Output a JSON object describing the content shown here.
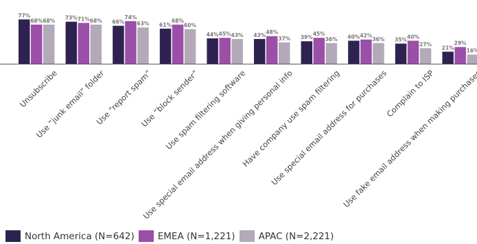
{
  "chart_data": {
    "type": "bar",
    "categories": [
      "Unsubscribe",
      "Use “junk email” folder",
      "Use “report spam”",
      "Use “block sender”",
      "Use spam filtering software",
      "Use special email address when giving personal info",
      "Have company use spam filtering",
      "Use special email address for purchases",
      "Complain to ISP",
      "Use fake email address when making purchases"
    ],
    "series": [
      {
        "name": "North America (N=642)",
        "color": "#2e2350",
        "values": [
          77,
          73,
          66,
          61,
          44,
          43,
          39,
          40,
          35,
          21
        ]
      },
      {
        "name": "EMEA (N=1,221)",
        "color": "#9b4fa8",
        "values": [
          68,
          71,
          74,
          68,
          45,
          48,
          45,
          42,
          40,
          29
        ]
      },
      {
        "name": "APAC (N=2,221)",
        "color": "#b3a9b8",
        "values": [
          68,
          68,
          63,
          60,
          43,
          37,
          36,
          36,
          27,
          16
        ]
      }
    ],
    "value_suffix": "%",
    "ylim": [
      0,
      100
    ],
    "grid": false,
    "legend_position": "bottom-left"
  }
}
